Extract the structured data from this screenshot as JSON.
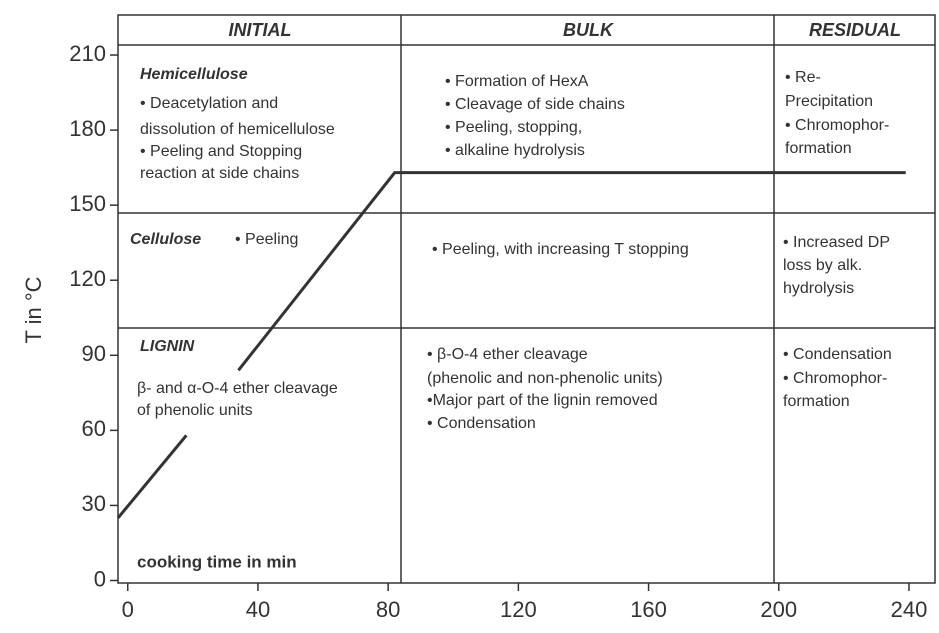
{
  "chart_data": {
    "type": "line",
    "y_label": "T in °C",
    "x_label": "cooking time in min",
    "x": [
      -3,
      18,
      null,
      34,
      82,
      239
    ],
    "values": [
      25,
      58,
      null,
      84,
      163,
      163
    ],
    "color": "#333333",
    "xlim": [
      -3,
      248
    ],
    "ylim": [
      -1,
      226
    ],
    "xticks": [
      0,
      40,
      80,
      120,
      160,
      200,
      240
    ],
    "yticks": [
      0,
      30,
      60,
      90,
      120,
      150,
      180,
      210
    ],
    "phases": [
      "INITIAL",
      "BULK",
      "RESIDUAL"
    ],
    "rows": [
      {
        "title": "Hemicellulose",
        "cells": [
          [
            "• Deacetylation and",
            "dissolution of hemicellulose",
            "• Peeling and Stopping",
            "reaction at side chains"
          ],
          [
            "• Formation of HexA",
            "• Cleavage of side chains",
            "• Peeling, stopping,",
            "• alkaline hydrolysis"
          ],
          [
            "• Re-",
            "Precipitation",
            "• Chromophor-",
            "formation"
          ]
        ]
      },
      {
        "title": "Cellulose",
        "cells": [
          [
            "• Peeling"
          ],
          [
            "• Peeling, with increasing T stopping"
          ],
          [
            "• Increased DP",
            "loss by alk.",
            "hydrolysis"
          ]
        ]
      },
      {
        "title": "LIGNIN",
        "cells": [
          [
            "β- and α-O-4 ether cleavage",
            "of phenolic units"
          ],
          [
            "• β-O-4 ether cleavage",
            "(phenolic and non-phenolic units)",
            "•Major part of the lignin removed",
            "• Condensation"
          ],
          [
            "• Condensation",
            "• Chromophor-",
            "formation"
          ]
        ]
      }
    ]
  }
}
